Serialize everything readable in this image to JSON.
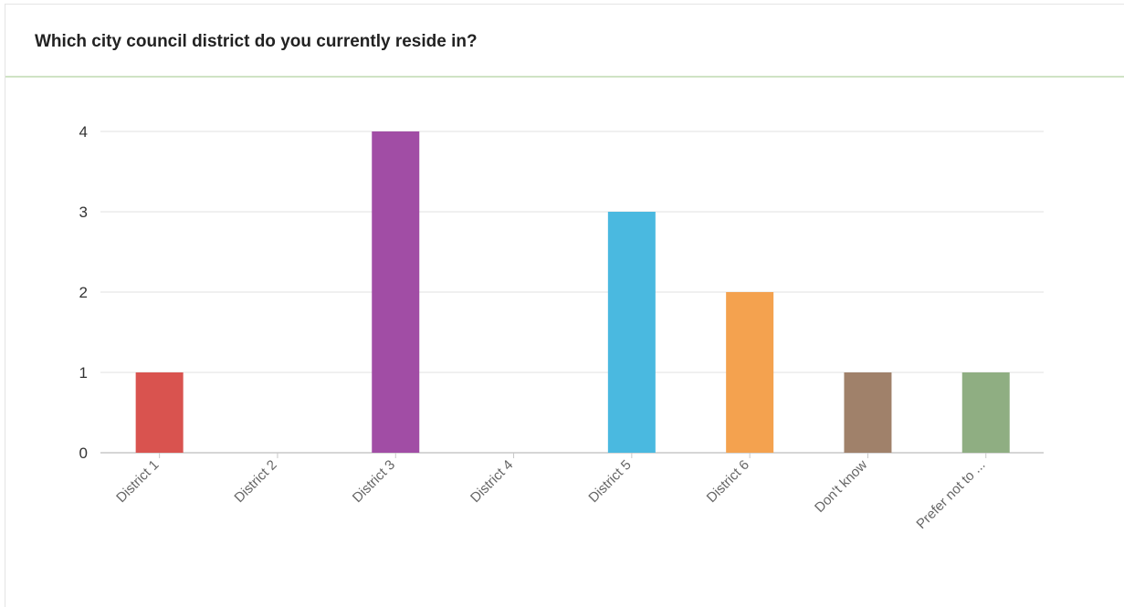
{
  "title": "Which city council district do you currently reside in?",
  "colors": {
    "grid": "#e2e2e2",
    "axis": "#c8c8c8",
    "header_rule": "#cfe3c4"
  },
  "chart_data": {
    "type": "bar",
    "title": "Which city council district do you currently reside in?",
    "categories": [
      "District 1",
      "District 2",
      "District 3",
      "District 4",
      "District 5",
      "District 6",
      "Don't know",
      "Prefer not to ..."
    ],
    "values": [
      1,
      0,
      4,
      0,
      3,
      2,
      1,
      1
    ],
    "bar_colors": [
      "#d9534f",
      "#b5a1d0",
      "#a14da5",
      "#8ab1d8",
      "#4ab9e0",
      "#f4a24f",
      "#a0816a",
      "#8fae82"
    ],
    "xlabel": "",
    "ylabel": "",
    "ylim": [
      0,
      4
    ],
    "yticks": [
      "0",
      "1",
      "2",
      "3",
      "4"
    ],
    "grid": true,
    "legend": "none"
  }
}
